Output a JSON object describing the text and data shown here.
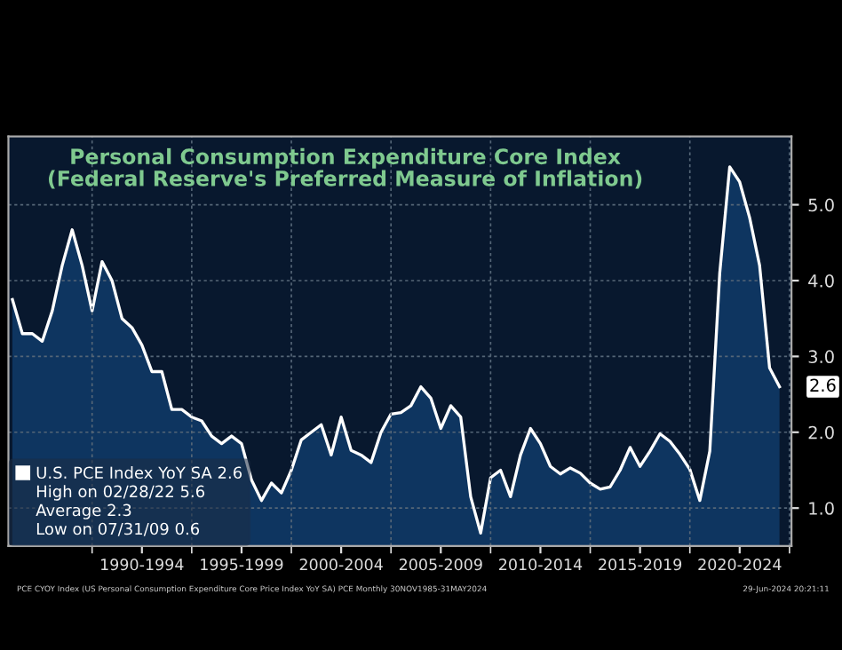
{
  "chart_data": {
    "type": "area",
    "title": "Personal Consumption Expenditure Core Index\n(Federal Reserve's Preferred Measure of Inflation)",
    "categories": [
      null,
      null,
      null,
      null,
      null,
      null,
      null,
      null,
      null,
      null,
      null,
      null,
      null,
      "1990-1994",
      null,
      null,
      null,
      null,
      null,
      null,
      null,
      null,
      null,
      "1995-1999",
      null,
      null,
      null,
      null,
      null,
      null,
      null,
      null,
      null,
      "2000-2004",
      null,
      null,
      null,
      null,
      null,
      null,
      null,
      null,
      null,
      "2005-2009",
      null,
      null,
      null,
      null,
      null,
      null,
      null,
      null,
      null,
      "2010-2014",
      null,
      null,
      null,
      null,
      null,
      null,
      null,
      null,
      null,
      "2015-2019",
      null,
      null,
      null,
      null,
      null,
      null,
      null,
      null,
      null,
      "2020-2024",
      null,
      null,
      null,
      null
    ],
    "series": [
      {
        "name": "U.S. PCE Index YoY SA 2.6",
        "color": "#ffffff",
        "values": [
          3.75,
          3.3,
          3.3,
          3.2,
          3.6,
          4.2,
          4.67,
          4.2,
          3.6,
          4.25,
          4.0,
          3.5,
          3.38,
          3.15,
          2.8,
          2.8,
          2.3,
          2.3,
          2.2,
          2.15,
          1.95,
          1.85,
          1.95,
          1.85,
          1.37,
          1.1,
          1.33,
          1.2,
          1.5,
          1.9,
          2.0,
          2.1,
          1.7,
          2.2,
          1.76,
          1.7,
          1.6,
          2.0,
          2.24,
          2.26,
          2.35,
          2.6,
          2.45,
          2.05,
          2.35,
          2.2,
          1.15,
          0.67,
          1.4,
          1.5,
          1.15,
          1.7,
          2.05,
          1.85,
          1.55,
          1.45,
          1.53,
          1.46,
          1.33,
          1.25,
          1.28,
          1.5,
          1.8,
          1.55,
          1.75,
          1.98,
          1.88,
          1.71,
          1.51,
          1.1,
          1.75,
          4.1,
          5.5,
          5.3,
          4.83,
          4.2,
          2.85,
          2.6
        ]
      }
    ],
    "ylim": [
      0.5,
      5.9
    ],
    "yticks": [
      {
        "value": 1,
        "label": "1.0"
      },
      {
        "value": 2,
        "label": "2.0"
      },
      {
        "value": 3,
        "label": "3.0"
      },
      {
        "value": 4,
        "label": "4.0"
      },
      {
        "value": 5,
        "label": "5.0"
      }
    ],
    "grid": true,
    "legend": "bottom left",
    "annotations": [
      "High on 02/28/22 5.6",
      "Average 2.3",
      "Low on 07/31/09 0.6",
      "PCE CYOY Index (US Personal Consumption Expenditure Core Price Index YoY SA) PCE Monthly 30NOV1985-31MAY2024",
      "29-Jun-2024 20:21:11",
      "2.6"
    ]
  }
}
